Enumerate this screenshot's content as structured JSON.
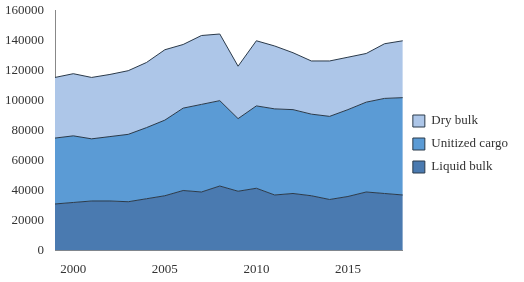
{
  "chart_data": {
    "type": "area",
    "stacked": true,
    "grid": false,
    "legend": "right",
    "x": [
      1999,
      2000,
      2001,
      2002,
      2003,
      2004,
      2005,
      2006,
      2007,
      2008,
      2009,
      2010,
      2011,
      2012,
      2013,
      2014,
      2015,
      2016,
      2017,
      2018
    ],
    "xlim": [
      1999,
      2018
    ],
    "xticks": [
      2000,
      2005,
      2010,
      2015
    ],
    "ylim": [
      0,
      160000
    ],
    "yticks": [
      0,
      20000,
      40000,
      60000,
      80000,
      100000,
      120000,
      140000,
      160000
    ],
    "series": [
      {
        "name": "Liquid bulk",
        "color": "#4a7ab0",
        "values": [
          31000,
          32000,
          33000,
          33000,
          32500,
          34500,
          36500,
          40000,
          39000,
          43000,
          39500,
          41500,
          37000,
          38000,
          36500,
          34000,
          36000,
          39000,
          38000,
          37000
        ]
      },
      {
        "name": "Unitized cargo",
        "color": "#5b9bd5",
        "values": [
          44000,
          44500,
          41500,
          43000,
          45000,
          47500,
          50500,
          55000,
          58500,
          57000,
          48500,
          55000,
          57500,
          56000,
          54500,
          55500,
          58000,
          60000,
          63500,
          65000
        ]
      },
      {
        "name": "Dry bulk",
        "color": "#adc6e8",
        "values": [
          40500,
          41500,
          41000,
          41500,
          42500,
          43500,
          47000,
          42500,
          46000,
          44500,
          35000,
          43500,
          42000,
          38000,
          35500,
          37000,
          35000,
          32500,
          36500,
          38000
        ]
      }
    ]
  }
}
